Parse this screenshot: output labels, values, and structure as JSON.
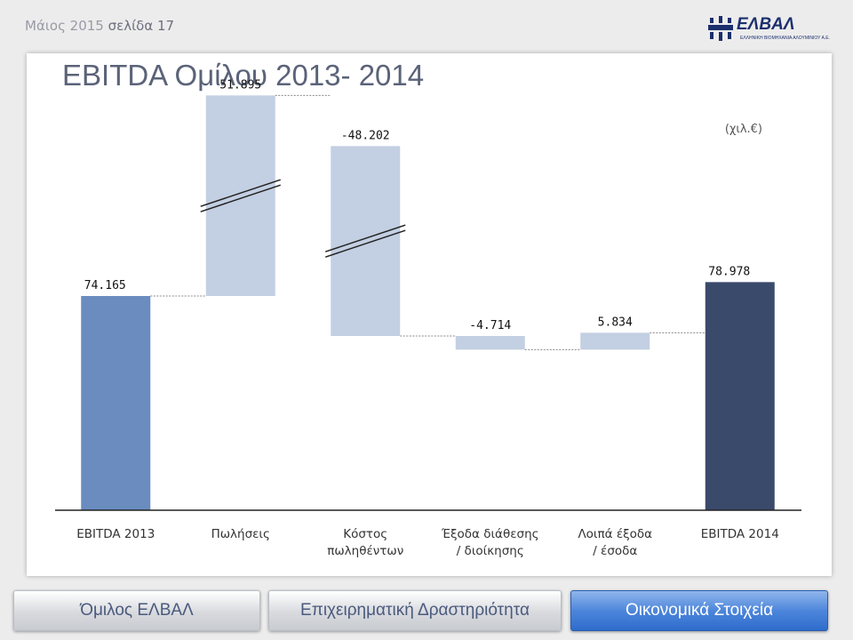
{
  "header": {
    "date": "Μάιος 2015",
    "page": "σελίδα 17"
  },
  "logo": {
    "name": "ΕΛΒΑΛ",
    "subtitle": "ΕΛΛΗΝΙΚΗ ΒΙΟΜΗΧΑΝΙΑ ΑΛΟΥΜΙΝΙΟΥ Α.Ε.",
    "icon": "elval-logo-icon"
  },
  "page_title": "EBITDA Ομίλου 2013- 2014",
  "unit_note": "(χιλ.€)",
  "nav": [
    {
      "label": "Όμιλος ΕΛΒΑΛ",
      "active": false
    },
    {
      "label": "Επιχειρηματική Δραστηριότητα",
      "active": false
    },
    {
      "label": "Οικονομικά Στοιχεία",
      "active": true
    }
  ],
  "colors": {
    "start_bar": "#6a8cbf",
    "end_bar": "#3a4a6b",
    "delta_bar": "#c3cfe2",
    "active_nav": "#3f7ad6"
  },
  "chart_data": {
    "type": "bar",
    "subtype": "waterfall",
    "title": "",
    "categories": [
      "EBITDA 2013",
      "Πωλήσεις",
      "Κόστος πωληθέντων",
      "Έξοδα διάθεσης / διοίκησης",
      "Λοιπά έξοδα / έσοδα",
      "EBITDA 2014"
    ],
    "category_lines": [
      [
        "EBITDA 2013"
      ],
      [
        "Πωλήσεις"
      ],
      [
        "Κόστος",
        "πωληθέντων"
      ],
      [
        "Έξοδα διάθεσης",
        "/ διοίκησης"
      ],
      [
        "Λοιπά έξοδα",
        "/ έσοδα"
      ],
      [
        "EBITDA 2014"
      ]
    ],
    "values": [
      74165,
      51895,
      -48202,
      -4714,
      5834,
      78978
    ],
    "labels": [
      "74.165",
      "51.895",
      "-48.202",
      "-4.714",
      "5.834",
      "78.978"
    ],
    "kinds": [
      "total",
      "delta",
      "delta",
      "delta",
      "delta",
      "total"
    ],
    "axis_break": true,
    "ylabel": "",
    "xlabel": "",
    "grid": false
  }
}
